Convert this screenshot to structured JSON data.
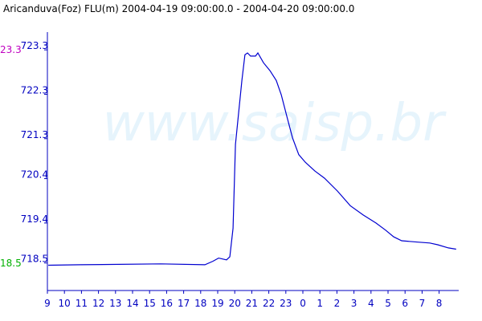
{
  "chart_data": {
    "type": "line",
    "title": "Aricanduva(Foz) FLU(m) 2004-04-19 09:00:00.0 - 2004-04-20 09:00:00.0",
    "watermark": "www.saisp.br",
    "max_label": "23.3",
    "min_label": "18.5",
    "color": "#0000d0",
    "x": [
      0.05,
      1.93,
      6.65,
      9.25,
      9.72,
      10.05,
      10.52,
      10.71,
      10.9,
      11.04,
      11.23,
      11.42,
      11.6,
      11.75,
      11.93,
      12.22,
      12.36,
      12.69,
      13.07,
      13.44,
      13.73,
      14.06,
      14.39,
      14.76,
      15.14,
      15.71,
      16.27,
      17.03,
      17.78,
      18.54,
      19.29,
      19.86,
      20.33,
      20.8,
      21.75,
      22.45,
      22.92,
      23.54,
      24.0
    ],
    "values": [
      718.45,
      718.46,
      718.48,
      718.46,
      718.54,
      718.61,
      718.57,
      718.64,
      719.28,
      721.17,
      721.89,
      722.61,
      723.19,
      723.23,
      723.16,
      723.16,
      723.23,
      723.01,
      722.83,
      722.61,
      722.29,
      721.8,
      721.32,
      720.94,
      720.77,
      720.57,
      720.41,
      720.12,
      719.79,
      719.58,
      719.4,
      719.24,
      719.09,
      719.0,
      718.97,
      718.95,
      718.91,
      718.84,
      718.81
    ],
    "xlim": [
      0,
      24.15
    ],
    "ylim": [
      717.88,
      723.7
    ],
    "yticks": [
      718.5,
      719.4,
      720.4,
      721.3,
      722.3,
      723.3
    ],
    "xticks": [
      {
        "value": 0,
        "label": "9"
      },
      {
        "value": 1,
        "label": "10"
      },
      {
        "value": 2,
        "label": "11"
      },
      {
        "value": 3,
        "label": "12"
      },
      {
        "value": 4,
        "label": "13"
      },
      {
        "value": 5,
        "label": "14"
      },
      {
        "value": 6,
        "label": "15"
      },
      {
        "value": 7,
        "label": "16"
      },
      {
        "value": 8,
        "label": "17"
      },
      {
        "value": 9,
        "label": "18"
      },
      {
        "value": 10,
        "label": "19"
      },
      {
        "value": 11,
        "label": "20"
      },
      {
        "value": 12,
        "label": "21"
      },
      {
        "value": 13,
        "label": "22"
      },
      {
        "value": 14,
        "label": "23"
      },
      {
        "value": 15,
        "label": "0"
      },
      {
        "value": 16,
        "label": "1"
      },
      {
        "value": 17,
        "label": "2"
      },
      {
        "value": 18,
        "label": "3"
      },
      {
        "value": 19,
        "label": "4"
      },
      {
        "value": 20,
        "label": "5"
      },
      {
        "value": 21,
        "label": "6"
      },
      {
        "value": 22,
        "label": "7"
      },
      {
        "value": 23,
        "label": "8"
      }
    ]
  }
}
